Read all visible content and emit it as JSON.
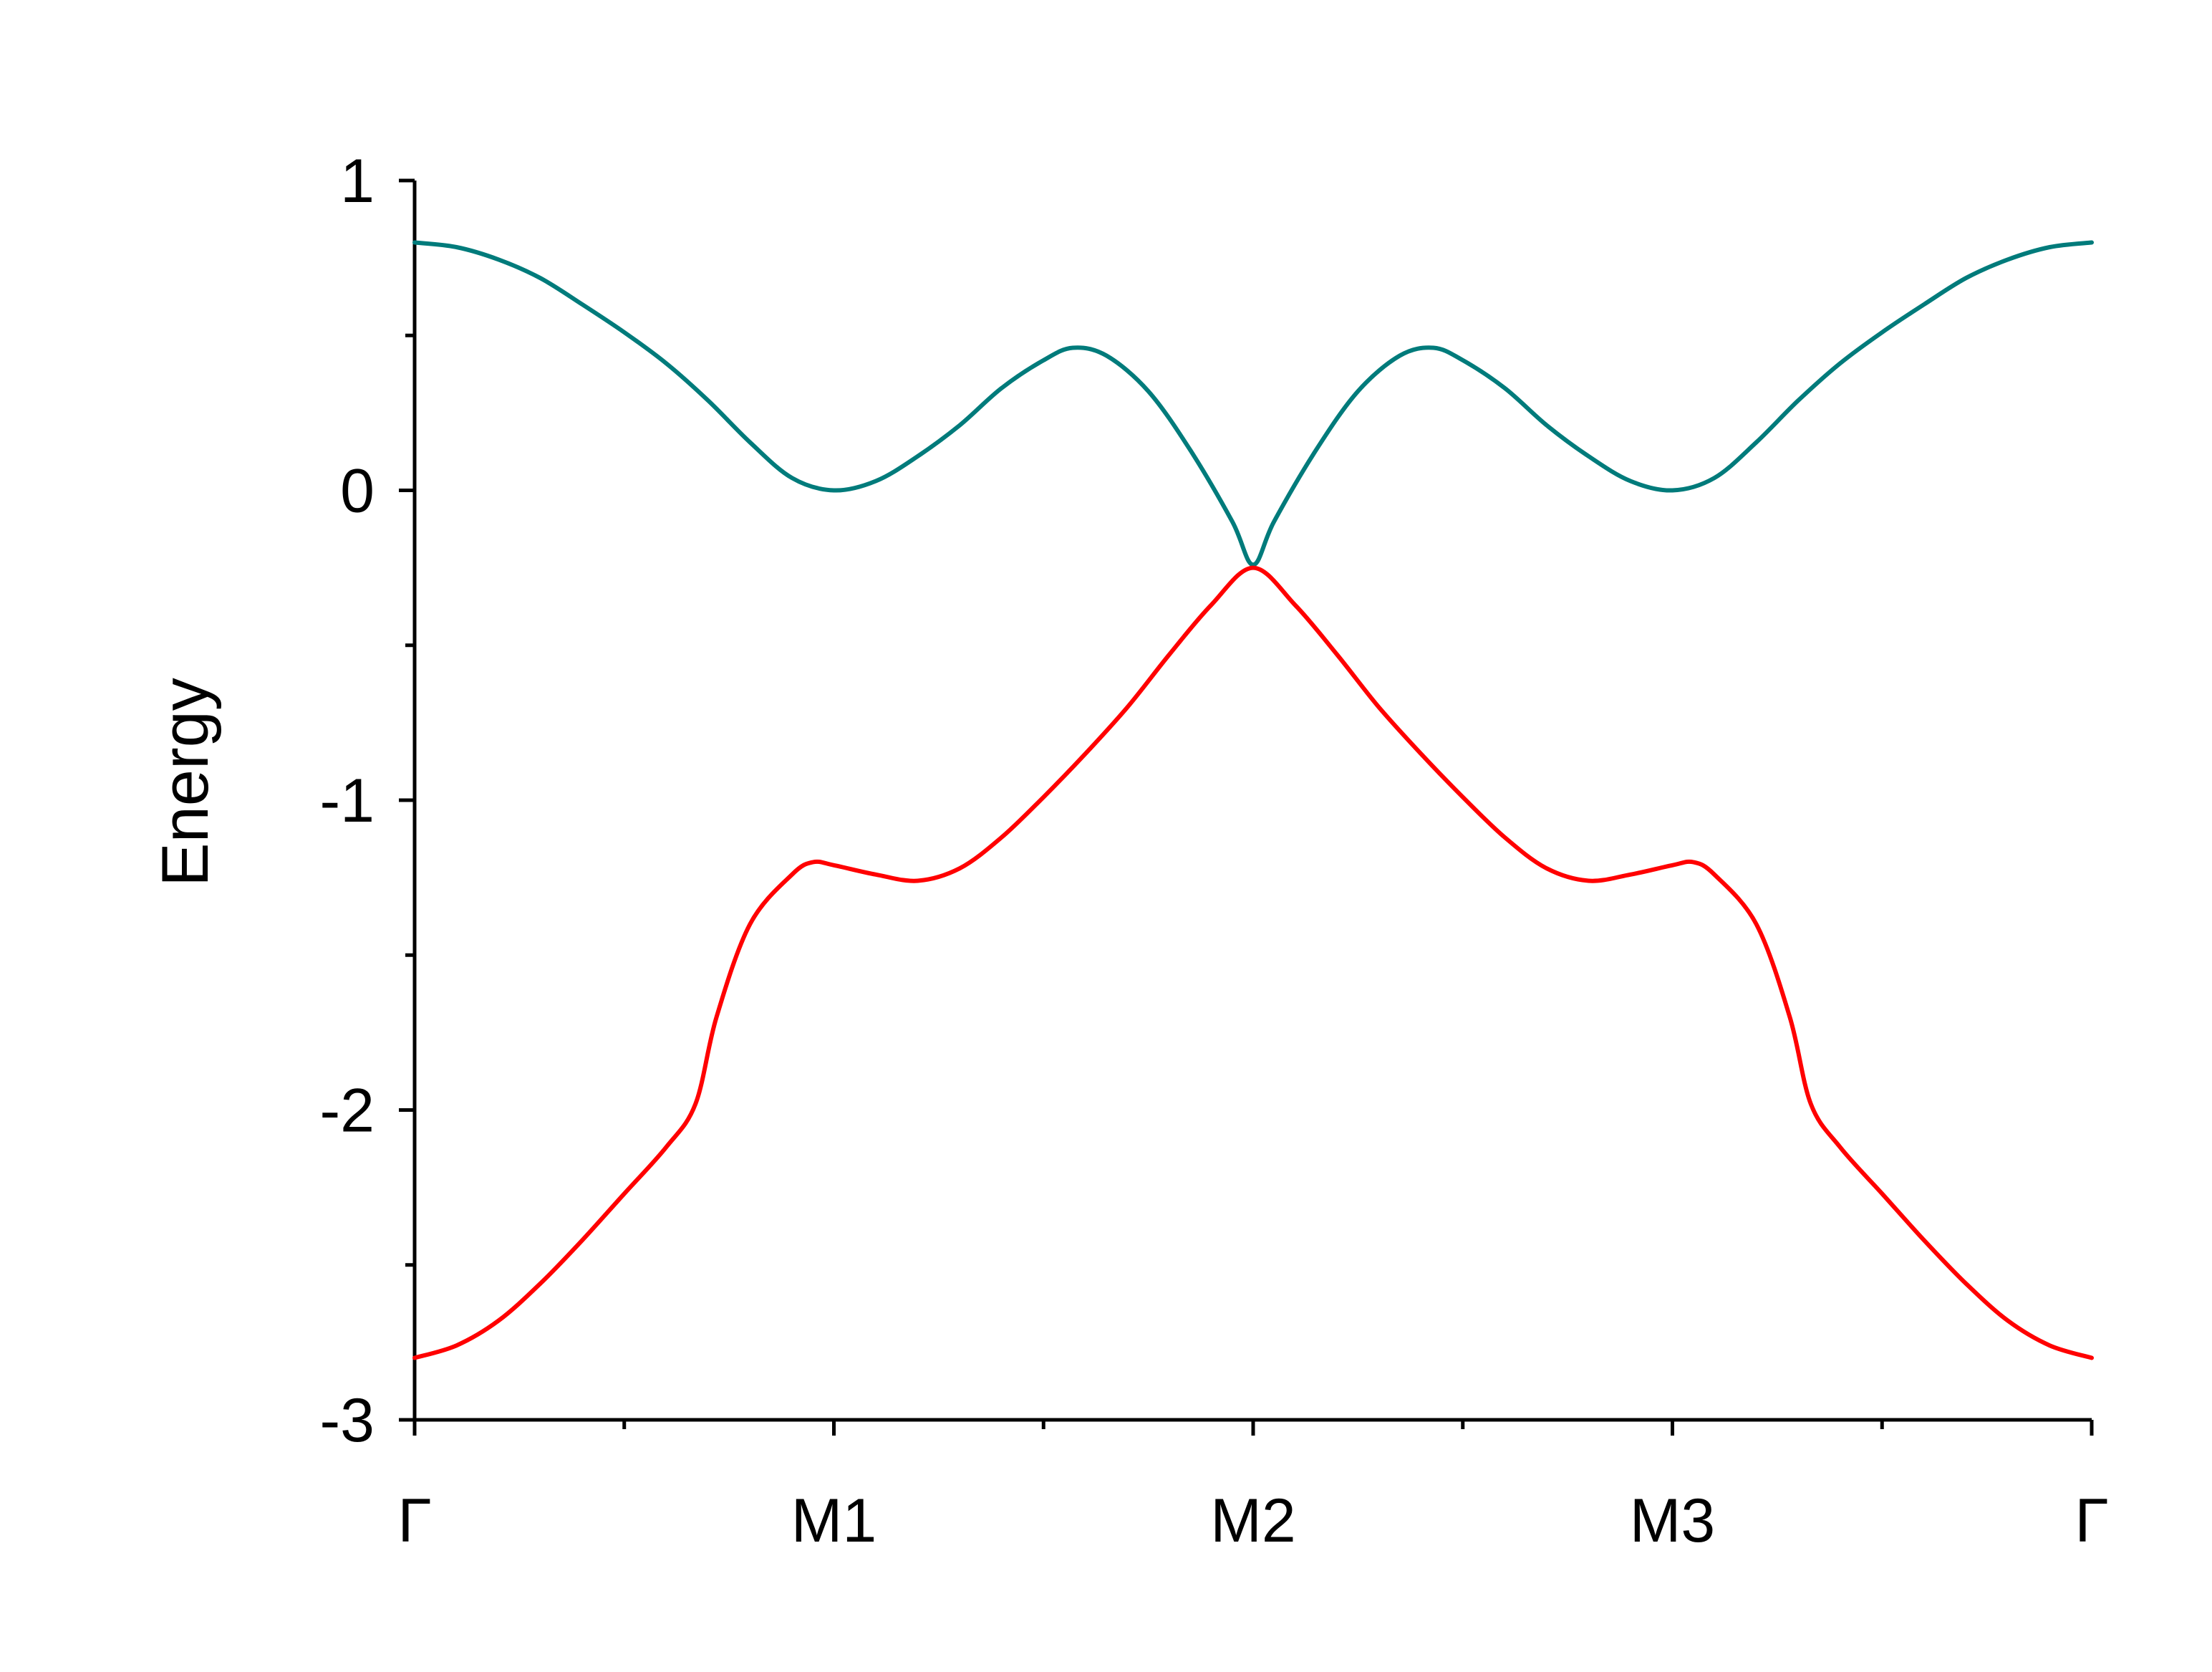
{
  "chart_data": {
    "type": "line",
    "title": "",
    "xlabel": "",
    "ylabel": "Energy",
    "ylim": [
      -3,
      1
    ],
    "xlim": [
      0,
      4
    ],
    "grid": false,
    "legend": "none",
    "y_ticks": [
      {
        "value": 1,
        "label": "1"
      },
      {
        "value": 0,
        "label": "0"
      },
      {
        "value": -1,
        "label": "-1"
      },
      {
        "value": -2,
        "label": "-2"
      },
      {
        "value": -3,
        "label": "-3"
      }
    ],
    "y_minor_ticks": [
      0.5,
      -0.5,
      -1.5,
      -2.5
    ],
    "x_ticks": [
      {
        "value": 0,
        "label": "Γ"
      },
      {
        "value": 1,
        "label": "M1"
      },
      {
        "value": 2,
        "label": "M2"
      },
      {
        "value": 3,
        "label": "M3"
      },
      {
        "value": 4,
        "label": "Γ"
      }
    ],
    "x_minor_ticks": [
      0.5,
      1.5,
      2.5,
      3.5
    ],
    "series": [
      {
        "color": "#007b7b",
        "x": [
          0,
          0.1,
          0.2,
          0.3,
          0.4,
          0.5,
          0.6,
          0.7,
          0.8,
          0.9,
          1.0,
          1.1,
          1.2,
          1.3,
          1.4,
          1.5,
          1.57,
          1.65,
          1.75,
          1.85,
          1.95,
          2.0,
          2.05,
          2.15,
          2.25,
          2.35,
          2.43,
          2.5,
          2.6,
          2.7,
          2.8,
          2.9,
          3.0,
          3.1,
          3.2,
          3.3,
          3.4,
          3.5,
          3.6,
          3.7,
          3.8,
          3.9,
          4.0
        ],
        "y": [
          0.8,
          0.785,
          0.745,
          0.685,
          0.6,
          0.51,
          0.41,
          0.29,
          0.155,
          0.04,
          0.0,
          0.03,
          0.11,
          0.21,
          0.33,
          0.42,
          0.46,
          0.435,
          0.32,
          0.13,
          -0.1,
          -0.24,
          -0.1,
          0.13,
          0.32,
          0.435,
          0.46,
          0.42,
          0.33,
          0.21,
          0.11,
          0.03,
          0.0,
          0.04,
          0.155,
          0.29,
          0.41,
          0.51,
          0.6,
          0.685,
          0.745,
          0.785,
          0.8
        ]
      },
      {
        "color": "#ff0000",
        "x": [
          0,
          0.1,
          0.2,
          0.3,
          0.4,
          0.5,
          0.6,
          0.67,
          0.72,
          0.8,
          0.9,
          0.95,
          1.0,
          1.1,
          1.2,
          1.3,
          1.4,
          1.5,
          1.6,
          1.7,
          1.8,
          1.9,
          2.0,
          2.1,
          2.2,
          2.3,
          2.4,
          2.5,
          2.6,
          2.7,
          2.8,
          2.9,
          3.0,
          3.05,
          3.1,
          3.2,
          3.28,
          3.33,
          3.4,
          3.5,
          3.6,
          3.7,
          3.8,
          3.9,
          4.0
        ],
        "y": [
          -2.8,
          -2.76,
          -2.68,
          -2.56,
          -2.42,
          -2.27,
          -2.12,
          -1.98,
          -1.7,
          -1.4,
          -1.24,
          -1.2,
          -1.21,
          -1.24,
          -1.26,
          -1.22,
          -1.12,
          -0.99,
          -0.85,
          -0.7,
          -0.53,
          -0.37,
          -0.25,
          -0.37,
          -0.53,
          -0.7,
          -0.85,
          -0.99,
          -1.12,
          -1.22,
          -1.26,
          -1.24,
          -1.21,
          -1.2,
          -1.24,
          -1.4,
          -1.7,
          -1.98,
          -2.12,
          -2.27,
          -2.42,
          -2.56,
          -2.68,
          -2.76,
          -2.8
        ]
      }
    ]
  }
}
